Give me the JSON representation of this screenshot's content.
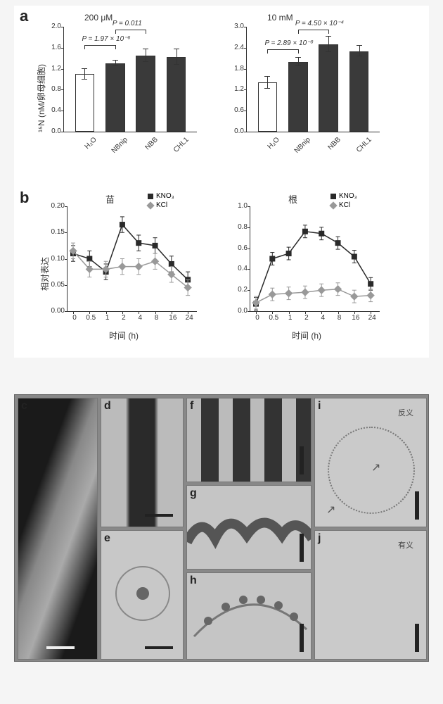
{
  "panel_a": {
    "label": "a",
    "left_chart": {
      "title": "200 μM",
      "y_axis_label": "¹⁵N (nM/卵母细胞)",
      "categories": [
        "H₂O",
        "NBnip",
        "NBB",
        "CHL1"
      ],
      "values": [
        1.1,
        1.3,
        1.45,
        1.42
      ],
      "errors": [
        0.1,
        0.05,
        0.12,
        0.15
      ],
      "bar_colors": [
        "#ffffff",
        "#3a3a3a",
        "#3a3a3a",
        "#3a3a3a"
      ],
      "ylim": [
        0,
        2.0
      ],
      "yticks": [
        0,
        0.4,
        0.8,
        1.2,
        1.6,
        2.0
      ],
      "p_values": [
        {
          "text": "P = 1.97 × 10⁻⁶",
          "from": 0,
          "to": 1
        },
        {
          "text": "P = 0.011",
          "from": 1,
          "to": 2
        }
      ],
      "bg_color": "#ffffff",
      "axis_color": "#333333",
      "font_size": 10
    },
    "right_chart": {
      "title": "10 mM",
      "categories": [
        "H₂O",
        "NBnip",
        "NBB",
        "CHL1"
      ],
      "values": [
        1.4,
        2.0,
        2.5,
        2.3
      ],
      "errors": [
        0.18,
        0.12,
        0.22,
        0.15
      ],
      "bar_colors": [
        "#ffffff",
        "#3a3a3a",
        "#3a3a3a",
        "#3a3a3a"
      ],
      "ylim": [
        0,
        3.0
      ],
      "yticks": [
        0,
        0.6,
        1.2,
        1.8,
        2.4,
        3.0
      ],
      "p_values": [
        {
          "text": "P = 2.89 × 10⁻⁸",
          "from": 0,
          "to": 1
        },
        {
          "text": "P = 4.50 × 10⁻⁴",
          "from": 1,
          "to": 2
        }
      ],
      "bg_color": "#ffffff",
      "axis_color": "#333333",
      "font_size": 10
    }
  },
  "panel_b": {
    "label": "b",
    "y_axis_label": "相对表达",
    "x_axis_label": "时间 (h)",
    "x_ticks": [
      "0",
      "0.5",
      "1",
      "2",
      "4",
      "8",
      "16",
      "24"
    ],
    "left_chart": {
      "title": "苗",
      "series": [
        {
          "name": "KNO₃",
          "color": "#2a2a2a",
          "marker": "square",
          "values": [
            0.11,
            0.1,
            0.075,
            0.165,
            0.13,
            0.125,
            0.09,
            0.06
          ]
        },
        {
          "name": "KCl",
          "color": "#999999",
          "marker": "diamond",
          "values": [
            0.115,
            0.08,
            0.08,
            0.085,
            0.085,
            0.095,
            0.07,
            0.045
          ]
        }
      ],
      "ylim": [
        0,
        0.2
      ],
      "yticks": [
        0,
        0.05,
        0.1,
        0.15,
        0.2
      ],
      "error": 0.015
    },
    "right_chart": {
      "title": "根",
      "series": [
        {
          "name": "KNO₃",
          "color": "#2a2a2a",
          "marker": "square",
          "values": [
            0.07,
            0.5,
            0.55,
            0.76,
            0.74,
            0.65,
            0.52,
            0.26
          ]
        },
        {
          "name": "KCl",
          "color": "#999999",
          "marker": "diamond",
          "values": [
            0.08,
            0.16,
            0.17,
            0.18,
            0.2,
            0.21,
            0.14,
            0.15
          ]
        }
      ],
      "ylim": [
        0,
        1.0
      ],
      "yticks": [
        0,
        0.2,
        0.4,
        0.6,
        0.8,
        1.0
      ],
      "error": 0.06
    },
    "legend": [
      "KNO₃",
      "KCl"
    ]
  },
  "micrographs": {
    "panels": [
      {
        "id": "c",
        "text": ""
      },
      {
        "id": "d",
        "text": ""
      },
      {
        "id": "e",
        "text": ""
      },
      {
        "id": "f",
        "text": ""
      },
      {
        "id": "g",
        "text": ""
      },
      {
        "id": "h",
        "text": ""
      },
      {
        "id": "i",
        "text": "反义"
      },
      {
        "id": "j",
        "text": "有义"
      }
    ],
    "scale_bar_color": "#1a1a1a"
  }
}
